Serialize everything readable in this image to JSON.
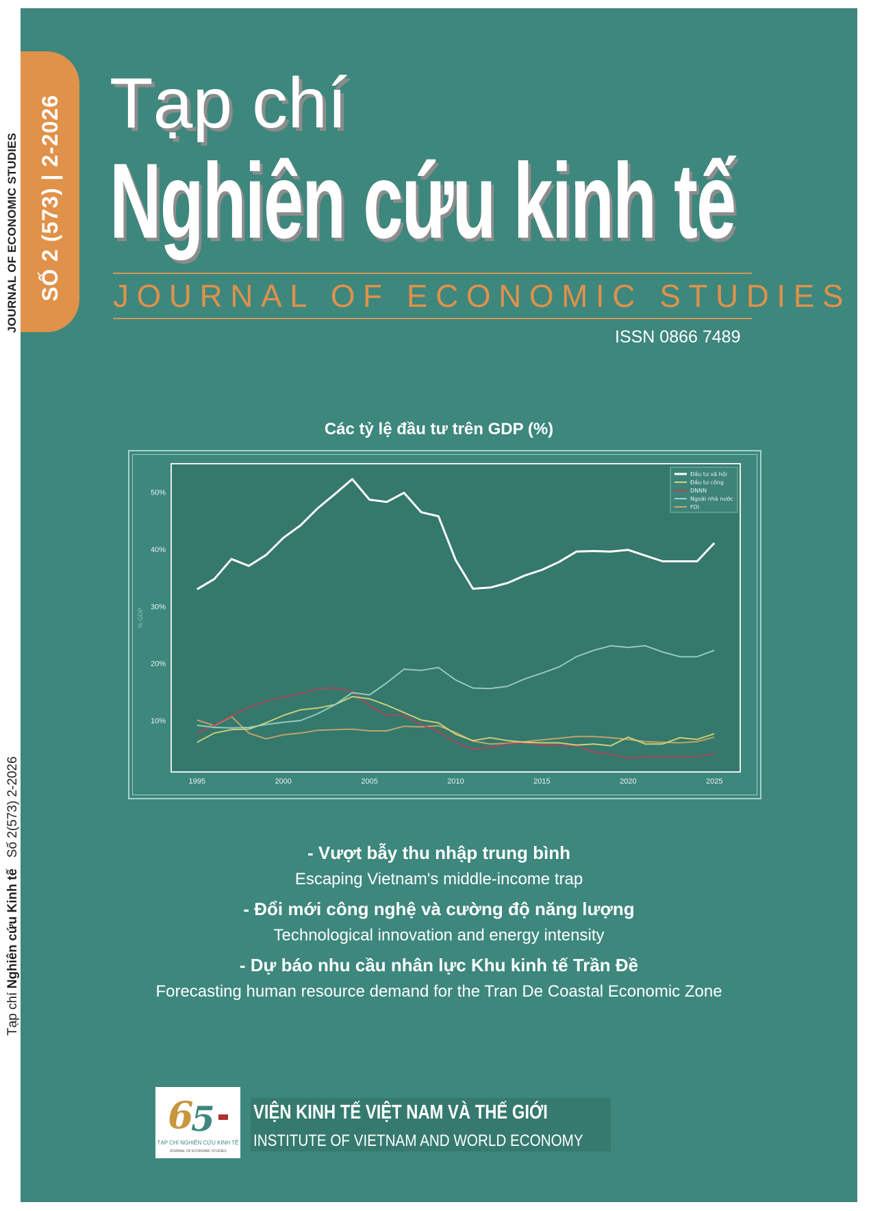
{
  "spine": {
    "journal_en": "JOURNAL OF ECONOMIC STUDIES",
    "lower_prefix": "Tạp chí",
    "lower_title": "Nghiên cứu Kinh tế",
    "lower_issue": "Số 2(573) 2-2026"
  },
  "issue_tab": {
    "label": "SỐ 2  (573) | 2-2026"
  },
  "masthead": {
    "line1": "Tạp chí",
    "line2": "Nghiên cứu kinh tế",
    "subtitle": "JOURNAL OF ECONOMIC STUDIES",
    "issn": "ISSN 0866 7489"
  },
  "colors": {
    "background": "#3d877d",
    "plot_background": "#35786c",
    "accent_orange": "#e0914a"
  },
  "chart_data": {
    "type": "line",
    "title": "Các tỷ lệ đầu tư trên GDP (%)",
    "xlabel": "",
    "ylabel": "% GDP",
    "x": [
      1995,
      1996,
      1997,
      1998,
      1999,
      2000,
      2001,
      2002,
      2003,
      2004,
      2005,
      2006,
      2007,
      2008,
      2009,
      2010,
      2011,
      2012,
      2013,
      2014,
      2015,
      2016,
      2017,
      2018,
      2019,
      2020,
      2021,
      2022,
      2023,
      2024,
      2025
    ],
    "xticks": [
      "1995",
      "2000",
      "2005",
      "2010",
      "2015",
      "2020",
      "2025"
    ],
    "yticks": [
      "10%",
      "20%",
      "30%",
      "40%",
      "50%"
    ],
    "xlim": [
      1993.5,
      2026.5
    ],
    "ylim": [
      1,
      55
    ],
    "grid": false,
    "legend": "top-right",
    "series": [
      {
        "name": "Đầu tư xã hội",
        "color": "#ffffff",
        "values": [
          33,
          34.8,
          38.3,
          37.1,
          39,
          42,
          44.2,
          47.2,
          49.7,
          52.3,
          48.7,
          48.3,
          49.9,
          46.5,
          45.8,
          38.1,
          33.1,
          33.3,
          34.1,
          35.4,
          36.4,
          37.8,
          39.6,
          39.7,
          39.6,
          39.9,
          38.9,
          37.9,
          37.9,
          37.9,
          41.1
        ]
      },
      {
        "name": "Đầu tư công",
        "color": "#d9d87a",
        "values": [
          6.2,
          7.8,
          8.4,
          8.5,
          9.6,
          10.9,
          11.9,
          12.2,
          12.8,
          14.2,
          13.8,
          12.7,
          11.4,
          10.1,
          9.6,
          7.6,
          6.5,
          7,
          6.5,
          6.2,
          6.1,
          6.1,
          5.7,
          5.9,
          5.6,
          7.1,
          5.9,
          5.9,
          7,
          6.7,
          7.7
        ]
      },
      {
        "name": "DNNN",
        "color": "#b5435a",
        "values": [
          7.8,
          9.2,
          10.8,
          12.3,
          13.4,
          14.1,
          14.7,
          15.6,
          15.7,
          15.1,
          12.6,
          10.9,
          10.9,
          9.3,
          8.1,
          6.2,
          5,
          5.3,
          5.9,
          6.1,
          5.7,
          5.6,
          5.6,
          4.5,
          4.1,
          3.4,
          3.7,
          3.7,
          3.7,
          3.7,
          4.2
        ]
      },
      {
        "name": "Ngoài nhà nước",
        "color": "#9fd3c9",
        "values": [
          9.2,
          8.8,
          8.7,
          8.8,
          9.3,
          9.7,
          10,
          11.2,
          12.8,
          14.9,
          14.5,
          16.6,
          19,
          18.8,
          19.3,
          17.1,
          15.7,
          15.6,
          16,
          17.3,
          18.3,
          19.4,
          21.2,
          22.3,
          23.1,
          22.8,
          23.1,
          22,
          21.2,
          21.2,
          22.3
        ]
      },
      {
        "name": "FDI",
        "color": "#d3a86a",
        "values": [
          10.1,
          9.1,
          10.7,
          7.8,
          6.8,
          7.5,
          7.8,
          8.3,
          8.4,
          8.5,
          8.2,
          8.2,
          9,
          8.9,
          9.1,
          7.9,
          6.4,
          5.9,
          6,
          6.3,
          6.6,
          6.9,
          7.2,
          7.2,
          7,
          6.7,
          6.3,
          6.2,
          6.1,
          6.3,
          7.1
        ]
      }
    ]
  },
  "articles": [
    {
      "vi": "- Vượt bẫy thu nhập trung bình",
      "en": "Escaping Vietnam's middle-income trap"
    },
    {
      "vi": "- Đổi mới công nghệ và cường độ năng lượng",
      "en": "Technological innovation and energy intensity"
    },
    {
      "vi": "- Dự báo nhu cầu nhân lực Khu kinh tế Trần Đề",
      "en": "Forecasting human resource demand for the Tran De Coastal Economic Zone"
    }
  ],
  "publisher": {
    "logo_text": "65 TẠP CHÍ NGHIÊN CỨU KINH TẾ JOURNAL OF ECONOMIC STUDIES 1961-2026",
    "name_vi": "VIỆN KINH TẾ VIỆT NAM  VÀ THẾ GIỚI",
    "name_en": "INSTITUTE OF VIETNAM  AND WORLD  ECONOMY"
  }
}
